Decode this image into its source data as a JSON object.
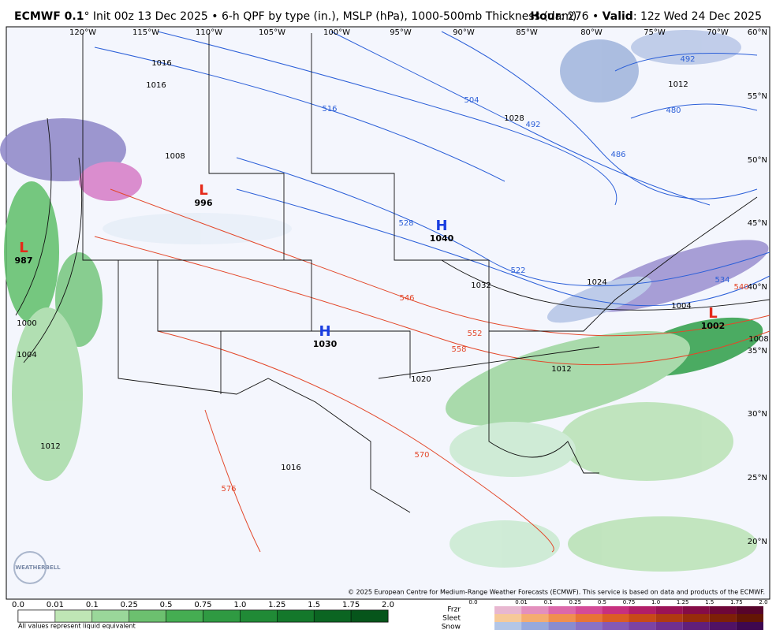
{
  "header": {
    "model": "ECMWF 0.1",
    "description": "° Init 00z 13 Dec 2025 • 6-h QPF by type (in.), MSLP (hPa), 1000-500mb Thickness (dam)",
    "hour_label": "Hour",
    "hour": ": 276 • ",
    "valid_label": "Valid",
    "valid": ": 12z Wed 24 Dec 2025"
  },
  "longitude_labels": [
    "120°W",
    "115°W",
    "110°W",
    "105°W",
    "100°W",
    "95°W",
    "90°W",
    "85°W",
    "80°W",
    "75°W",
    "70°W"
  ],
  "latitude_labels": [
    "60°N",
    "55°N",
    "50°N",
    "45°N",
    "40°N",
    "35°N",
    "30°N",
    "25°N",
    "20°N"
  ],
  "pressure_centers": [
    {
      "letter": "L",
      "value": "996"
    },
    {
      "letter": "L",
      "value": "987"
    },
    {
      "letter": "H",
      "value": "1040"
    },
    {
      "letter": "H",
      "value": "1030"
    },
    {
      "letter": "L",
      "value": "1002"
    }
  ],
  "thickness_labels": [
    "516",
    "504",
    "492",
    "492",
    "480",
    "486",
    "528",
    "522",
    "534",
    "540",
    "546",
    "552",
    "558",
    "570",
    "576"
  ],
  "isobar_labels": [
    "1016",
    "1016",
    "1008",
    "1028",
    "1012",
    "1032",
    "1024",
    "1004",
    "1008",
    "1012",
    "1020",
    "1004",
    "1000",
    "1012",
    "1016"
  ],
  "copyright": "© 2025 European Centre for Medium-Range Weather Forecasts (ECMWF). This service is based on data and products of the ECMWF.",
  "logo": "WEATHERBELL",
  "qpf_legend": {
    "labels": [
      "0.0",
      "0.01",
      "0.1",
      "0.25",
      "0.5",
      "0.75",
      "1.0",
      "1.25",
      "1.5",
      "1.75",
      "2.0"
    ],
    "note": "All values represent liquid equivalent"
  },
  "type_legend": {
    "types": [
      "Frzr",
      "Sleet",
      "Snow"
    ],
    "labels": [
      "0.0",
      "0.01",
      "0.1",
      "0.25",
      "0.5",
      "0.75",
      "1.0",
      "1.25",
      "1.5",
      "1.75",
      "2.0"
    ]
  }
}
